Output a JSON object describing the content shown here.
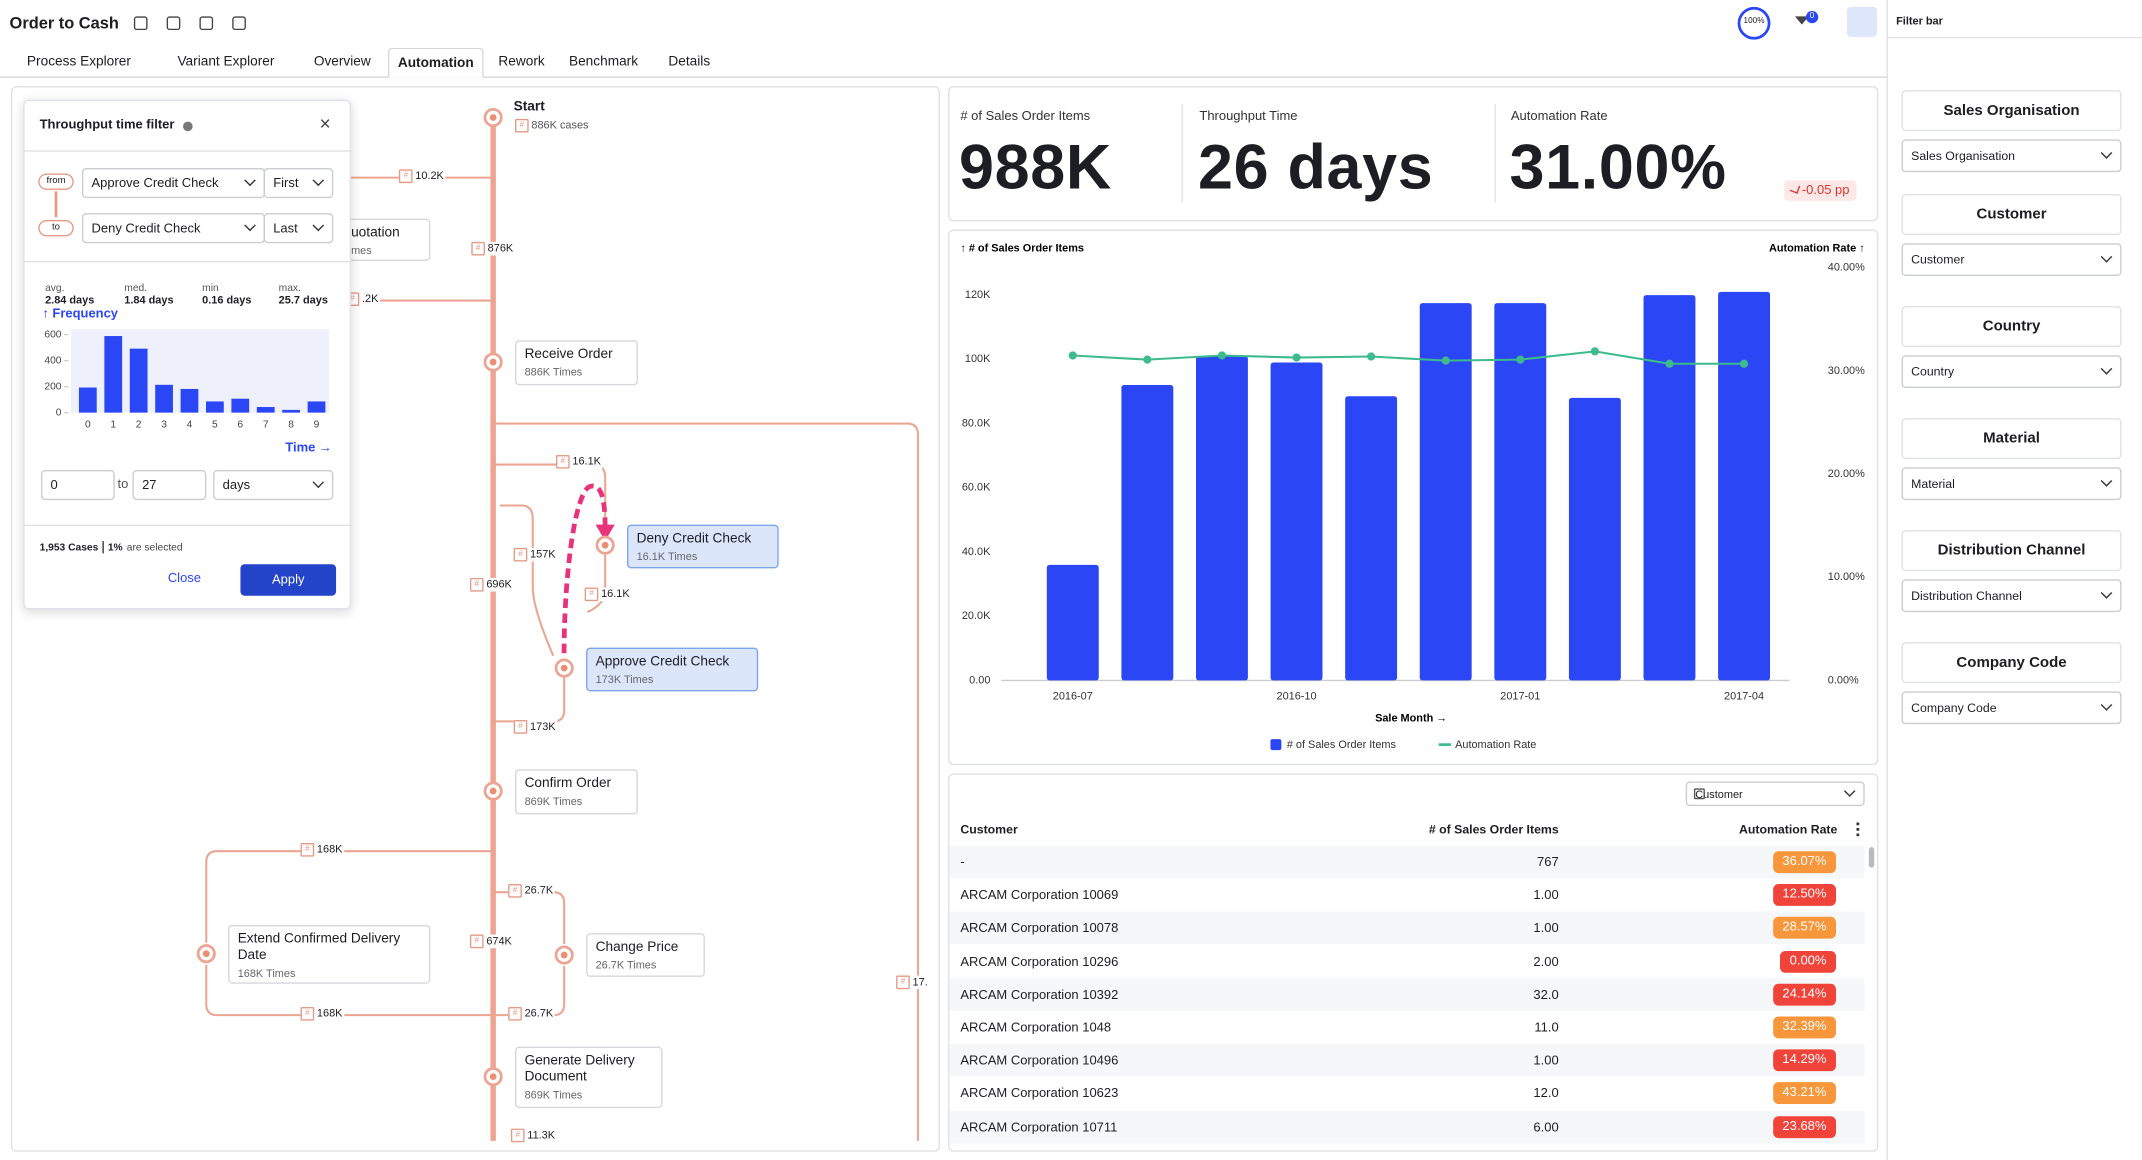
{
  "header": {
    "title": "Order to Cash",
    "tabs": [
      "Process Explorer",
      "Variant Explorer",
      "Overview",
      "Automation",
      "Rework",
      "Benchmark",
      "Details"
    ],
    "active_tab": 3,
    "progress": "100%",
    "filter_count": "0"
  },
  "process_map": {
    "start": {
      "label": "Start",
      "cases": "886K cases"
    },
    "nodes": [
      {
        "label": "Receive Order",
        "count": "886K Times"
      },
      {
        "label": "Deny Credit Check",
        "count": "16.1K Times"
      },
      {
        "label": "Approve Credit Check",
        "count": "173K Times"
      },
      {
        "label": "Confirm Order",
        "count": "869K Times"
      },
      {
        "label": "Extend Confirmed Delivery Date",
        "count": "168K Times"
      },
      {
        "label": "Change Price",
        "count": "26.7K Times"
      },
      {
        "label": "Generate Delivery Document",
        "count": "869K Times"
      },
      {
        "label": "uotation",
        "count": "mes"
      }
    ],
    "edge_labels": [
      "10.2K",
      "876K",
      ".2K",
      "16.1K",
      "157K",
      "16.1K",
      "696K",
      "173K",
      "168K",
      "26.7K",
      "674K",
      "168K",
      "26.7K",
      "11.3K",
      "17."
    ]
  },
  "throughput_filter": {
    "title": "Throughput time filter",
    "from": "from",
    "to": "to",
    "from_activity": "Approve Credit Check",
    "from_occurrence": "First",
    "to_activity": "Deny Credit Check",
    "to_occurrence": "Last",
    "stats": [
      {
        "label": "avg.",
        "value": "2.84 days"
      },
      {
        "label": "med.",
        "value": "1.84 days"
      },
      {
        "label": "min",
        "value": "0.16 days"
      },
      {
        "label": "max.",
        "value": "25.7 days"
      }
    ],
    "range_from": "0",
    "range_separator": "to",
    "range_to": "27",
    "unit": "days",
    "summary_count": "1,953 Cases",
    "summary_percent": "1%",
    "summary_text": "are selected",
    "close": "Close",
    "apply": "Apply"
  },
  "kpis": [
    {
      "label": "# of Sales Order Items",
      "value": "988K"
    },
    {
      "label": "Throughput Time",
      "value": "26 days"
    },
    {
      "label": "Automation Rate",
      "value": "31.00%",
      "delta": "-0.05 pp"
    }
  ],
  "table": {
    "selector": "Customer",
    "columns": [
      "Customer",
      "# of Sales Order Items",
      "Automation Rate"
    ],
    "rows": [
      {
        "customer": "-",
        "items": "767",
        "rate": "36.07%",
        "color": "#f7963a"
      },
      {
        "customer": "ARCAM Corporation 10069",
        "items": "1.00",
        "rate": "12.50%",
        "color": "#f0433a"
      },
      {
        "customer": "ARCAM Corporation 10078",
        "items": "1.00",
        "rate": "28.57%",
        "color": "#f7963a"
      },
      {
        "customer": "ARCAM Corporation 10296",
        "items": "2.00",
        "rate": "0.00%",
        "color": "#f0433a"
      },
      {
        "customer": "ARCAM Corporation 10392",
        "items": "32.0",
        "rate": "24.14%",
        "color": "#f0433a"
      },
      {
        "customer": "ARCAM Corporation 1048",
        "items": "11.0",
        "rate": "32.39%",
        "color": "#f7963a"
      },
      {
        "customer": "ARCAM Corporation 10496",
        "items": "1.00",
        "rate": "14.29%",
        "color": "#f0433a"
      },
      {
        "customer": "ARCAM Corporation 10623",
        "items": "12.0",
        "rate": "43.21%",
        "color": "#f7963a"
      },
      {
        "customer": "ARCAM Corporation 10711",
        "items": "6.00",
        "rate": "23.68%",
        "color": "#f0433a"
      }
    ]
  },
  "filter_bar": {
    "title": "Filter bar",
    "filters": [
      {
        "title": "Sales Organisation",
        "value": "Sales Organisation"
      },
      {
        "title": "Customer",
        "value": "Customer"
      },
      {
        "title": "Country",
        "value": "Country"
      },
      {
        "title": "Material",
        "value": "Material"
      },
      {
        "title": "Distribution Channel",
        "value": "Distribution Channel"
      },
      {
        "title": "Company Code",
        "value": "Company Code"
      }
    ]
  },
  "chart_data": [
    {
      "type": "bar",
      "y_label": "↑ # of Sales Order Items",
      "y2_label": "Automation Rate ↑",
      "x_label": "Sale Month →",
      "categories": [
        "2016-07",
        null,
        null,
        "2016-10",
        null,
        null,
        "2017-01",
        null,
        null,
        "2017-04"
      ],
      "series": [
        {
          "name": "# of Sales Order Items",
          "color": "#2a46f5",
          "values": [
            36000,
            92000,
            101000,
            99000,
            88500,
            117500,
            117500,
            88000,
            120000,
            121000
          ]
        },
        {
          "name": "Automation Rate",
          "color": "#3dbb8c",
          "type": "line",
          "axis": "y2",
          "values": [
            31.5,
            31.1,
            31.5,
            31.3,
            31.4,
            31.0,
            31.1,
            31.9,
            30.7,
            30.7
          ]
        }
      ],
      "ylim": [
        0,
        128500
      ],
      "yticks": [
        {
          "value": 0,
          "label": "0.00"
        },
        {
          "value": 20000,
          "label": "20.0K"
        },
        {
          "value": 40000,
          "label": "40.0K"
        },
        {
          "value": 60000,
          "label": "60.0K"
        },
        {
          "value": 80000,
          "label": "80.0K"
        },
        {
          "value": 100000,
          "label": "100K"
        },
        {
          "value": 120000,
          "label": "120K"
        }
      ],
      "y2lim": [
        0,
        40
      ],
      "y2ticks": [
        {
          "value": 0,
          "label": "0.00%"
        },
        {
          "value": 10,
          "label": "10.00%"
        },
        {
          "value": 20,
          "label": "20.00%"
        },
        {
          "value": 30,
          "label": "30.00%"
        },
        {
          "value": 40,
          "label": "40.00%"
        }
      ],
      "grid": false
    },
    {
      "type": "bar",
      "y_label": "↑ Frequency",
      "x_label": "Time →",
      "categories": [
        "0",
        "1",
        "2",
        "3",
        "4",
        "5",
        "6",
        "7",
        "8",
        "9"
      ],
      "values": [
        193,
        589,
        492,
        214,
        182,
        86,
        107,
        43,
        21,
        86
      ],
      "color": "#2a46f5",
      "ylim": [
        0,
        620
      ],
      "yticks": [
        0,
        200,
        400,
        600
      ],
      "grid": false
    }
  ]
}
